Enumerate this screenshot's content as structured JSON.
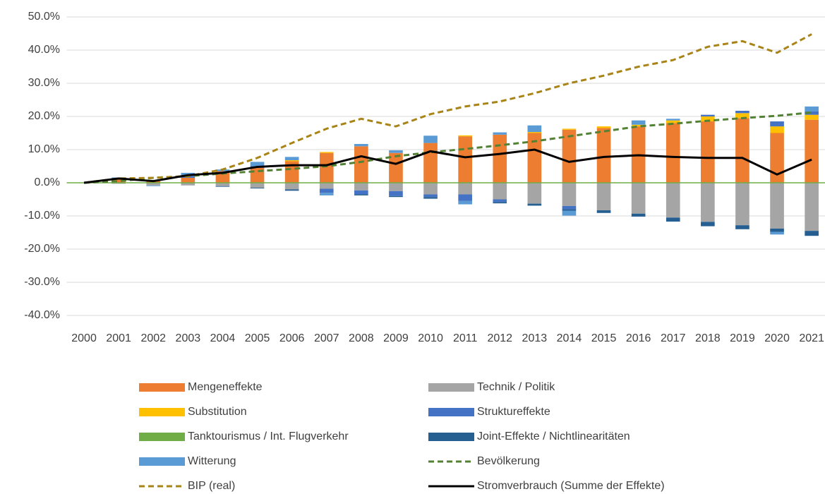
{
  "chart_data": {
    "type": "bar",
    "categories": [
      "2000",
      "2001",
      "2002",
      "2003",
      "2004",
      "2005",
      "2006",
      "2007",
      "2008",
      "2009",
      "2010",
      "2011",
      "2012",
      "2013",
      "2014",
      "2015",
      "2016",
      "2017",
      "2018",
      "2019",
      "2020",
      "2021"
    ],
    "ylim": [
      -40,
      50
    ],
    "yticks": [
      {
        "value": -40,
        "label": "-40.0%"
      },
      {
        "value": -30,
        "label": "-30.0%"
      },
      {
        "value": -20,
        "label": "-20.0%"
      },
      {
        "value": -10,
        "label": "-10.0%"
      },
      {
        "value": 0,
        "label": "0.0%"
      },
      {
        "value": 10,
        "label": "10.0%"
      },
      {
        "value": 20,
        "label": "20.0%"
      },
      {
        "value": 30,
        "label": "30.0%"
      },
      {
        "value": 40,
        "label": "40.0%"
      },
      {
        "value": 50,
        "label": "50.0%"
      }
    ],
    "grid": true,
    "series": [
      {
        "name": "Mengeneffekte",
        "kind": "bar",
        "color": "#ED7D31",
        "values": [
          0,
          1.0,
          0.5,
          1.5,
          3.5,
          4.5,
          6.5,
          9.0,
          11.0,
          9.0,
          12.0,
          14.0,
          14.5,
          15.0,
          16.0,
          16.5,
          17.0,
          18.0,
          18.5,
          19.5,
          15.0,
          19.0
        ]
      },
      {
        "name": "Technik / Politik",
        "kind": "bar",
        "color": "#A5A5A5",
        "values": [
          0,
          -0.3,
          -0.8,
          -0.8,
          -1.0,
          -1.5,
          -2.0,
          -1.8,
          -2.3,
          -2.5,
          -3.5,
          -3.5,
          -5.0,
          -6.3,
          -7.0,
          -8.3,
          -9.3,
          -10.5,
          -11.8,
          -12.8,
          -13.8,
          -14.5
        ]
      },
      {
        "name": "Substitution",
        "kind": "bar",
        "color": "#FFC000",
        "values": [
          0,
          0,
          0,
          0,
          0,
          0,
          0.3,
          0.3,
          0,
          0,
          0,
          0.3,
          0,
          0.3,
          0.3,
          0.5,
          0.5,
          0.8,
          1.5,
          1.5,
          2.0,
          1.5
        ]
      },
      {
        "name": "Struktureffekte",
        "kind": "bar",
        "color": "#4472C4",
        "values": [
          0,
          0,
          0,
          0.5,
          0,
          0.5,
          0,
          -1.2,
          -1.2,
          -1.5,
          -0.8,
          -2.0,
          -0.8,
          0,
          -1.0,
          0,
          0,
          0,
          0.5,
          0.7,
          1.5,
          1.0
        ]
      },
      {
        "name": "Tanktourismus / Int. Flugverkehr",
        "kind": "bar",
        "color": "#70AD47",
        "values": [
          0,
          0.3,
          0,
          0,
          0,
          0,
          0,
          0,
          0,
          0,
          0,
          0,
          0,
          0,
          0,
          0,
          0,
          0,
          0,
          0,
          0,
          0
        ]
      },
      {
        "name": "Joint-Effekte / Nichtlinearitäten",
        "kind": "bar",
        "color": "#255E91",
        "values": [
          0,
          0,
          0,
          0,
          -0.2,
          -0.2,
          -0.4,
          0,
          -0.3,
          -0.3,
          -0.5,
          0,
          -0.4,
          -0.6,
          -0.4,
          -0.8,
          -0.9,
          -1.2,
          -1.3,
          -1.2,
          -1.0,
          -1.5
        ]
      },
      {
        "name": "Witterung",
        "kind": "bar",
        "color": "#5B9BD5",
        "values": [
          0,
          0.3,
          -0.2,
          1.0,
          0.5,
          1.3,
          1.0,
          -0.8,
          0.7,
          0.8,
          2.2,
          -1.0,
          0.7,
          2.0,
          -1.5,
          0,
          1.3,
          0.5,
          0,
          0,
          -0.8,
          1.5
        ]
      },
      {
        "name": "Bevölkerung",
        "kind": "line",
        "style": "dashed",
        "color": "#548235",
        "values": [
          0,
          0.5,
          1.5,
          2,
          2.8,
          3.5,
          4.2,
          5,
          6.3,
          8,
          9.2,
          10.2,
          11.3,
          12.5,
          14,
          15.5,
          17,
          17.8,
          18.7,
          19.5,
          20.2,
          21.2
        ]
      },
      {
        "name": "BIP (real)",
        "kind": "line",
        "style": "dashed",
        "color": "#A88417",
        "values": [
          0,
          1.3,
          1.5,
          2,
          4,
          7.5,
          12,
          16.3,
          19.3,
          17,
          20.7,
          23,
          24.5,
          27,
          30,
          32.3,
          35,
          37,
          41,
          42.7,
          39.2,
          44.8
        ]
      },
      {
        "name": "Stromverbrauch (Summe der Effekte)",
        "kind": "line",
        "style": "solid",
        "color": "#000000",
        "values": [
          0,
          1.3,
          0.5,
          2.3,
          3,
          4.8,
          5.3,
          5.3,
          8,
          5.7,
          9.5,
          7.7,
          8.7,
          10,
          6.3,
          7.8,
          8.3,
          7.8,
          7.5,
          7.5,
          2.5,
          7
        ]
      }
    ]
  }
}
